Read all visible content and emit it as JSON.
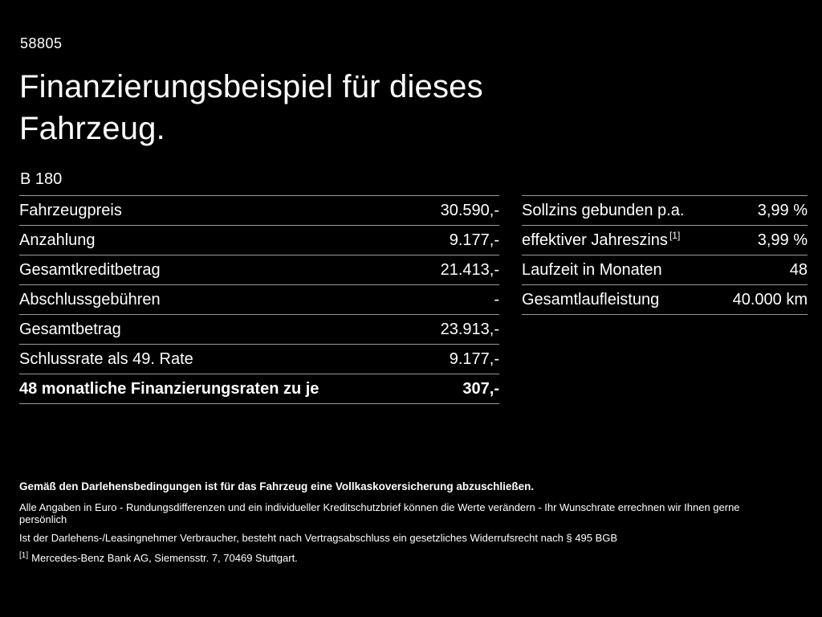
{
  "theme": {
    "background": "#000000",
    "text": "#ffffff",
    "divider": "#9a9a9a"
  },
  "page": {
    "doc_id": "58805",
    "title_line1": "Finanzierungsbeispiel für dieses",
    "title_line2": "Fahrzeug.",
    "model": "B 180"
  },
  "left_table": {
    "rows": [
      {
        "label": "Fahrzeugpreis",
        "value": "30.590,-"
      },
      {
        "label": "Anzahlung",
        "value": "9.177,-"
      },
      {
        "label": "Gesamtkreditbetrag",
        "value": "21.413,-"
      },
      {
        "label": "Abschlussgebühren",
        "value": "-"
      },
      {
        "label": "Gesamtbetrag",
        "value": "23.913,-"
      },
      {
        "label": "Schlussrate als 49. Rate",
        "value": "9.177,-"
      },
      {
        "label": "48 monatliche Finanzierungsraten zu je",
        "value": "307,-"
      }
    ]
  },
  "right_table": {
    "rows": [
      {
        "label": "Sollzins gebunden p.a.",
        "value": "3,99 %"
      },
      {
        "label": "effektiver Jahreszins",
        "sup": "[1]",
        "value": "3,99 %"
      },
      {
        "label": "Laufzeit in Monaten",
        "value": "48"
      },
      {
        "label": "Gesamtlaufleistung",
        "value": "40.000 km"
      }
    ]
  },
  "footer": {
    "bold_line": "Gemäß den Darlehensbedingungen ist für das Fahrzeug eine Vollkaskoversicherung abzuschließen.",
    "line2": "Alle Angaben in Euro - Rundungsdifferenzen und ein individueller Kreditschutzbrief können die Werte verändern - Ihr Wunschrate errechnen wir Ihnen gerne persönlich",
    "line3": "Ist der Darlehens-/Leasingnehmer Verbraucher, besteht nach Vertragsabschluss ein gesetzliches Widerrufsrecht nach § 495 BGB",
    "note_ref": "[1]",
    "note_text": "Mercedes-Benz Bank AG, Siemensstr. 7, 70469 Stuttgart."
  }
}
